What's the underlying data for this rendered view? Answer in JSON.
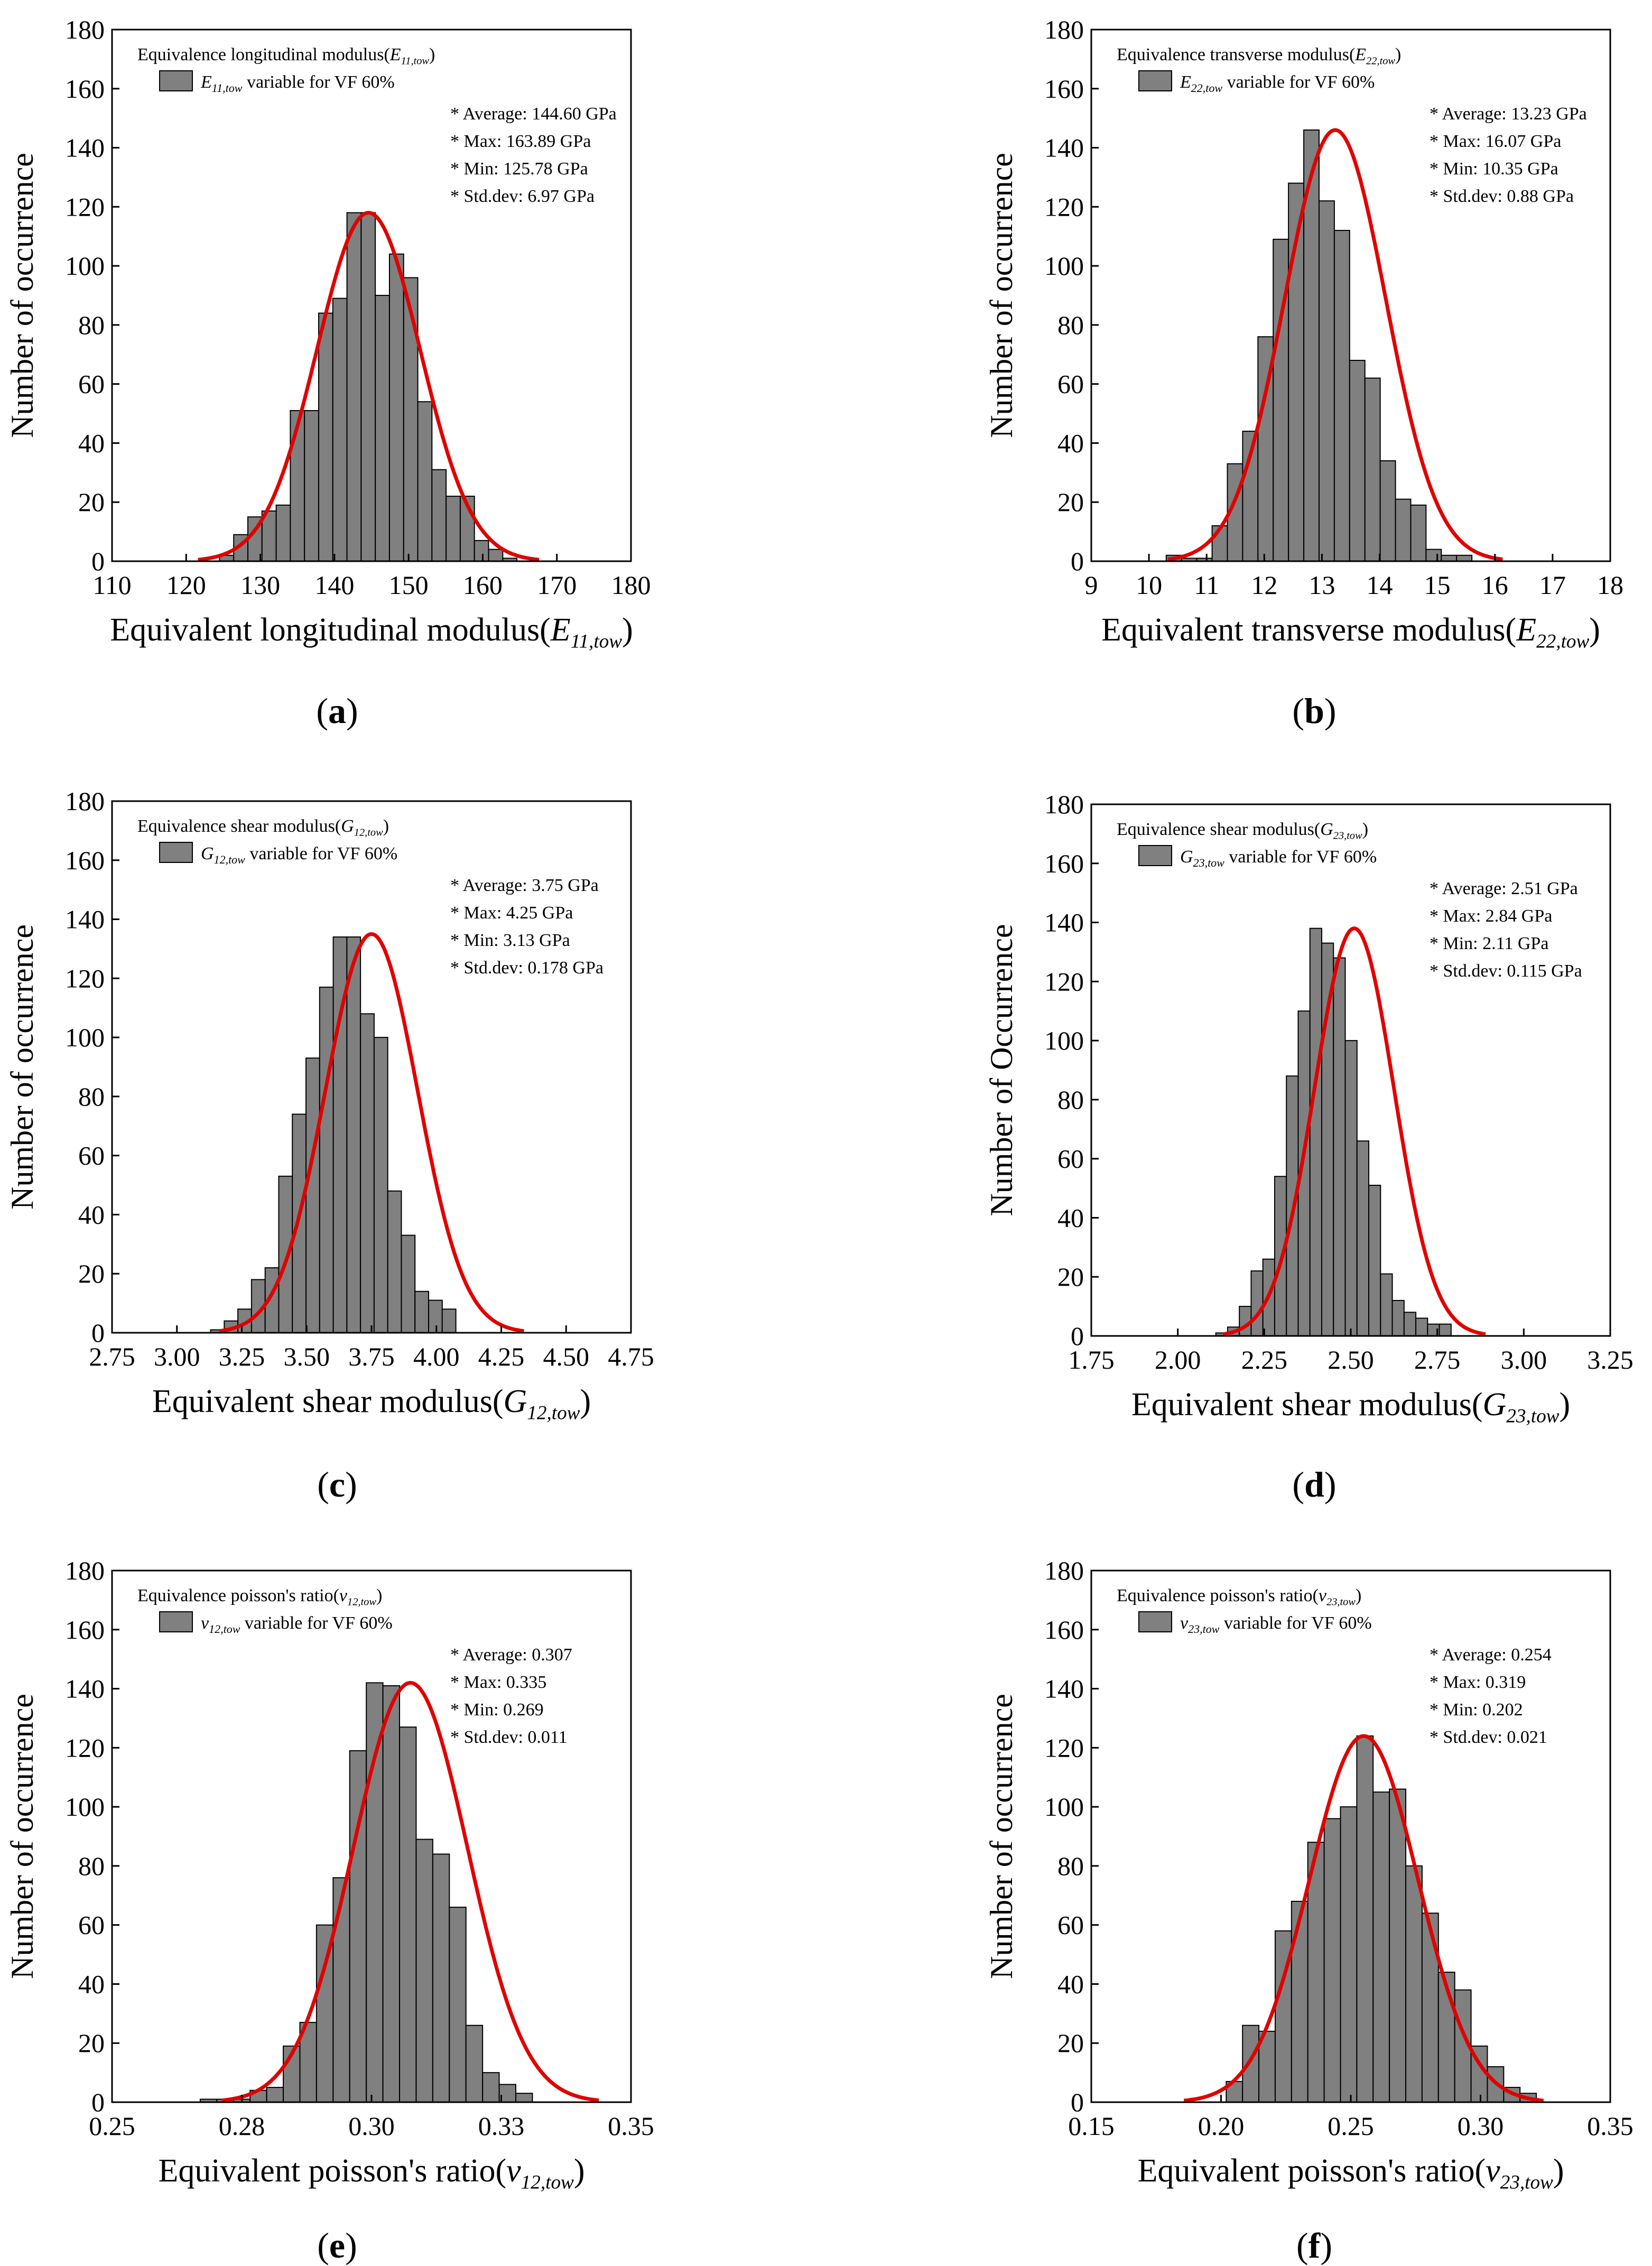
{
  "figure": {
    "hist_color": "#808080",
    "curve_color": "#e00000",
    "panels": [
      {
        "label": "a",
        "chart_data": {
          "type": "bar",
          "title": "Equivalence longitudinal modulus(",
          "title_sub": "E11,tow",
          "legend": {
            "var": "E11,tow",
            "text": " variable for VF 60%"
          },
          "stats": [
            "* Average: 144.60 GPa",
            "* Max: 163.89 GPa",
            "* Min: 125.78 GPa",
            "* Std.dev:  6.97 GPa"
          ],
          "xlabel": "Equivalent longitudinal modulus(",
          "xlabel_sub": "E11,tow",
          "ylabel": "Number of occurrence",
          "xlim": [
            110,
            180
          ],
          "xticks": [
            "110",
            "120",
            "130",
            "140",
            "150",
            "160",
            "170",
            "180"
          ],
          "xtick_values": [
            110,
            120,
            130,
            140,
            150,
            160,
            170,
            180
          ],
          "ylim": [
            0,
            180
          ],
          "yticks": [
            "0",
            "20",
            "40",
            "60",
            "80",
            "100",
            "120",
            "140",
            "160",
            "180"
          ],
          "bin_start": 124.5,
          "bin_width": 1.91,
          "values": [
            2,
            9,
            15,
            17,
            19,
            51,
            51,
            84,
            89,
            118,
            118,
            90,
            104,
            96,
            54,
            31,
            22,
            22,
            7,
            4,
            1
          ],
          "fit": {
            "mean": 144.6,
            "std": 6.97,
            "peak": 118
          }
        }
      },
      {
        "label": "b",
        "chart_data": {
          "type": "bar",
          "title": "Equivalence transverse modulus(",
          "title_sub": "E22,tow",
          "legend": {
            "var": "E22,tow",
            "text": " variable for VF 60%"
          },
          "stats": [
            "* Average: 13.23 GPa",
            "* Max: 16.07 GPa",
            "* Min: 10.35 GPa",
            "* Std.dev:  0.88 GPa"
          ],
          "xlabel": "Equivalent transverse modulus(",
          "xlabel_sub": "E22,tow",
          "ylabel": "Number of occurrence",
          "xlim": [
            9,
            18
          ],
          "xticks": [
            "9",
            "10",
            "11",
            "12",
            "13",
            "14",
            "15",
            "16",
            "17",
            "18"
          ],
          "xtick_values": [
            9,
            10,
            11,
            12,
            13,
            14,
            15,
            16,
            17,
            18
          ],
          "ylim": [
            0,
            180
          ],
          "yticks": [
            "0",
            "20",
            "40",
            "60",
            "80",
            "100",
            "120",
            "140",
            "160",
            "180"
          ],
          "bin_start": 10.3,
          "bin_width": 0.265,
          "values": [
            2,
            1,
            1,
            12,
            33,
            44,
            76,
            109,
            128,
            146,
            122,
            112,
            68,
            62,
            34,
            21,
            19,
            4,
            2,
            2
          ],
          "fit": {
            "mean": 13.23,
            "std": 0.88,
            "peak": 146
          }
        }
      },
      {
        "label": "c",
        "chart_data": {
          "type": "bar",
          "title": "Equivalence shear modulus(",
          "title_sub": "G12,tow",
          "legend": {
            "var": "G12,tow",
            "text": " variable for VF 60%"
          },
          "stats": [
            "* Average: 3.75 GPa",
            "* Max: 4.25 GPa",
            "* Min: 3.13 GPa",
            "* Std.dev:  0.178 GPa"
          ],
          "xlabel": "Equivalent shear modulus(",
          "xlabel_sub": "G12,tow",
          "ylabel": "Number of occurrence",
          "xlim": [
            2.75,
            4.75
          ],
          "xticks": [
            "2.75",
            "3.00",
            "3.25",
            "3.50",
            "3.75",
            "4.00",
            "4.25",
            "4.50",
            "4.75"
          ],
          "xtick_values": [
            2.75,
            3.0,
            3.25,
            3.5,
            3.75,
            4.0,
            4.25,
            4.5,
            4.75
          ],
          "ylim": [
            0,
            180
          ],
          "yticks": [
            "0",
            "20",
            "40",
            "60",
            "80",
            "100",
            "120",
            "140",
            "160",
            "180"
          ],
          "bin_start": 3.13,
          "bin_width": 0.0525,
          "values": [
            1,
            4,
            8,
            18,
            22,
            53,
            74,
            93,
            117,
            134,
            134,
            108,
            100,
            48,
            33,
            14,
            11,
            8
          ],
          "fit": {
            "mean": 3.75,
            "std": 0.178,
            "peak": 135
          }
        }
      },
      {
        "label": "d",
        "chart_data": {
          "type": "bar",
          "title": "Equivalence shear modulus(",
          "title_sub": "G23,tow",
          "legend": {
            "var": "G23,tow",
            "text": " variable for VF 60%"
          },
          "stats": [
            "* Average: 2.51 GPa",
            "* Max: 2.84 GPa",
            "* Min: 2.11 GPa",
            "* Std.dev:  0.115 GPa"
          ],
          "xlabel": "Equivalent shear modulus(",
          "xlabel_sub": "G23,tow",
          "ylabel": "Number of Occurrence",
          "xlim": [
            1.75,
            3.25
          ],
          "xticks": [
            "1.75",
            "2.00",
            "2.25",
            "2.50",
            "2.75",
            "3.00",
            "3.25"
          ],
          "xtick_values": [
            1.75,
            2.0,
            2.25,
            2.5,
            2.75,
            3.0,
            3.25
          ],
          "ylim": [
            0,
            180
          ],
          "yticks": [
            "0",
            "20",
            "40",
            "60",
            "80",
            "100",
            "120",
            "140",
            "160",
            "180"
          ],
          "bin_start": 2.11,
          "bin_width": 0.034,
          "values": [
            1,
            3,
            10,
            22,
            26,
            54,
            88,
            110,
            138,
            133,
            128,
            100,
            66,
            51,
            21,
            12,
            8,
            6,
            4,
            4
          ],
          "fit": {
            "mean": 2.51,
            "std": 0.115,
            "peak": 138
          }
        }
      },
      {
        "label": "e",
        "chart_data": {
          "type": "bar",
          "title": "Equivalence poisson's ratio(",
          "title_sub": "v12,tow",
          "legend": {
            "var": "v12,tow",
            "text": " variable for VF 60%"
          },
          "stats": [
            "* Average: 0.307",
            "* Max: 0.335",
            "* Min: 0.269",
            "* Std.dev:  0.011"
          ],
          "xlabel": "Equivalent poisson's ratio(",
          "xlabel_sub": "v12,tow",
          "ylabel": "Number of occurrence",
          "xlim": [
            0.25,
            0.35
          ],
          "xticks": [
            "0.25",
            "0.28",
            "0.30",
            "0.33",
            "0.35"
          ],
          "xtick_values": [
            0.25,
            0.275,
            0.3,
            0.325,
            0.35
          ],
          "ylim": [
            0,
            180
          ],
          "yticks": [
            "0",
            "20",
            "40",
            "60",
            "80",
            "100",
            "120",
            "140",
            "160",
            "180"
          ],
          "bin_start": 0.267,
          "bin_width": 0.0032,
          "values": [
            1,
            1,
            1,
            4,
            5,
            19,
            27,
            60,
            76,
            119,
            142,
            141,
            127,
            89,
            84,
            66,
            26,
            10,
            6,
            3
          ],
          "fit": {
            "mean": 0.3075,
            "std": 0.011,
            "peak": 142
          }
        }
      },
      {
        "label": "f",
        "chart_data": {
          "type": "bar",
          "title": "Equivalence poisson's ratio(",
          "title_sub": "v23,tow",
          "legend": {
            "var": "v23,tow",
            "text": " variable for VF 60%"
          },
          "stats": [
            "* Average: 0.254",
            "* Max: 0.319",
            "* Min: 0.202",
            "* Std.dev:  0.021"
          ],
          "xlabel": "Equivalent poisson's ratio(",
          "xlabel_sub": "v23,tow",
          "ylabel": "Number of occurrence",
          "xlim": [
            0.15,
            0.35
          ],
          "xticks": [
            "0.15",
            "0.20",
            "0.25",
            "0.30",
            "0.35"
          ],
          "xtick_values": [
            0.15,
            0.2,
            0.25,
            0.3,
            0.35
          ],
          "ylim": [
            0,
            180
          ],
          "yticks": [
            "0",
            "20",
            "40",
            "60",
            "80",
            "100",
            "120",
            "140",
            "160",
            "180"
          ],
          "bin_start": 0.202,
          "bin_width": 0.00629,
          "values": [
            7,
            26,
            24,
            58,
            68,
            88,
            96,
            100,
            124,
            105,
            106,
            80,
            64,
            44,
            38,
            19,
            12,
            5,
            3
          ],
          "fit": {
            "mean": 0.255,
            "std": 0.021,
            "peak": 124
          }
        }
      }
    ]
  }
}
